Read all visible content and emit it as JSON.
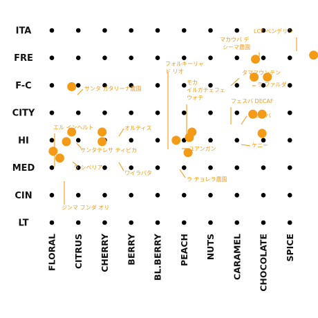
{
  "chart_data": {
    "type": "scatter",
    "rows": [
      "ITA",
      "FRE",
      "F-C",
      "CITY",
      "HI",
      "MED",
      "CIN",
      "LT"
    ],
    "columns": [
      "FLORAL",
      "CITRUS",
      "CHERRY",
      "BERRY",
      "BL.BERRY",
      "PEACH",
      "NUTS",
      "CARAMEL",
      "CHOCOLATE",
      "SPICE"
    ],
    "grid_dots": true,
    "accent_color": "#f39a17",
    "grid_dot_color": "#000000",
    "points": [
      {
        "label": "エル インヘルト",
        "x": 0.05,
        "y": 2.6
      },
      {
        "label": "ジンマ フンダ オリ",
        "x": 0.3,
        "y": 2.35
      },
      {
        "label": "ラ シベリア",
        "x": 0.55,
        "y": 2.95
      },
      {
        "label": "サンタテレサ ティピカ",
        "x": 0.75,
        "y": 3.3
      },
      {
        "label": "サンタ カタリーナ農園",
        "x": 0.75,
        "y": 4.95
      },
      {
        "label": "オルティス",
        "x": 1.9,
        "y": 3.3
      },
      {
        "label": "ワイラパタ",
        "x": 1.9,
        "y": 2.95
      },
      {
        "label": "フォルキーリャ ド リオ",
        "x": 4.7,
        "y": 3.0
      },
      {
        "label": "モカ イルガチェフェ ウォテ",
        "x": 5.3,
        "y": 3.3
      },
      {
        "label": "ユアンガン",
        "x": 5.2,
        "y": 3.1
      },
      {
        "label": "ラ チョレラ農園",
        "x": 5.15,
        "y": 2.55
      },
      {
        "label": "マカウバ デ シーマ農園",
        "x": 7.7,
        "y": 5.95
      },
      {
        "label": "タママウンテン",
        "x": 7.65,
        "y": 5.3
      },
      {
        "label": "ラ ファルダ",
        "x": 8.15,
        "y": 5.3
      },
      {
        "label": "フェスバ DECAF",
        "x": 7.6,
        "y": 3.95
      },
      {
        "label": "フェスバ",
        "x": 7.95,
        "y": 3.95
      },
      {
        "label": "ケニー",
        "x": 7.95,
        "y": 3.25
      },
      {
        "label": "LCF ペンデリン",
        "x": 9.9,
        "y": 6.1
      }
    ]
  }
}
